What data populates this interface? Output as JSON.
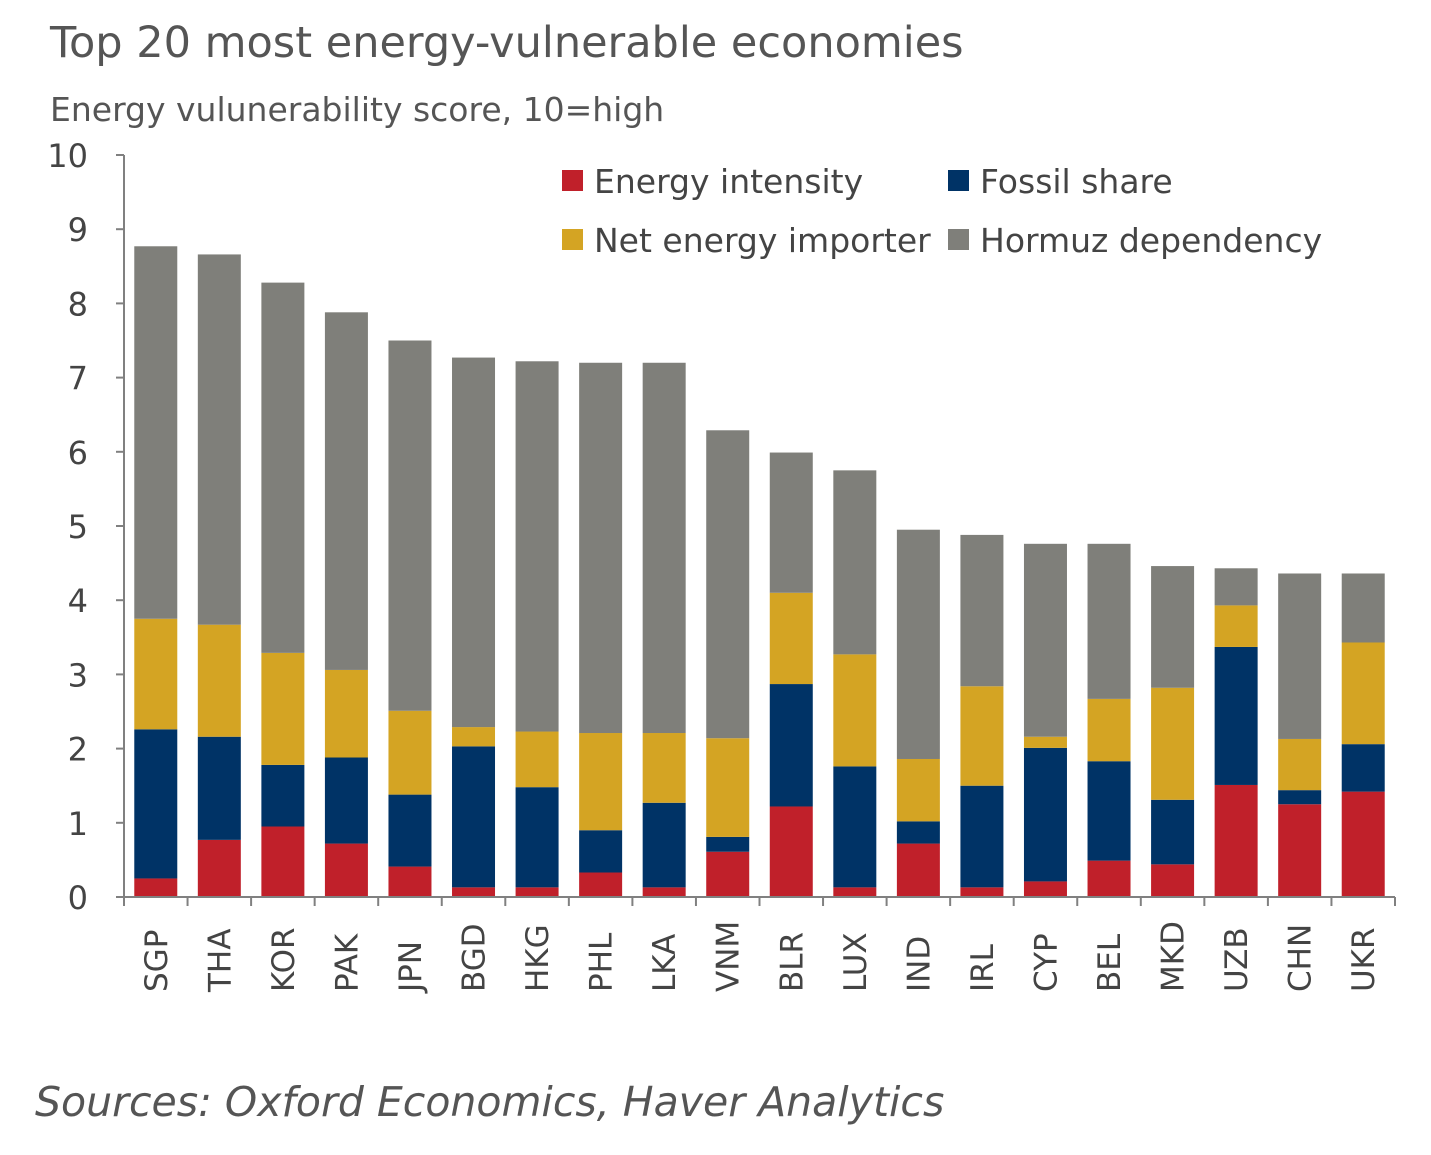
{
  "title": "Top 20 most energy-vulnerable economies",
  "subtitle": "Energy vulunerability score, 10=high",
  "source": "Sources: Oxford Economics, Haver Analytics",
  "chart_data": {
    "type": "bar",
    "stacked": true,
    "ylim": [
      0,
      10
    ],
    "yticks": [
      0,
      1,
      2,
      3,
      4,
      5,
      6,
      7,
      8,
      9,
      10
    ],
    "grid": false,
    "legend_position": "top-right",
    "categories": [
      "SGP",
      "THA",
      "KOR",
      "PAK",
      "JPN",
      "BGD",
      "HKG",
      "PHL",
      "LKA",
      "VNM",
      "BLR",
      "LUX",
      "IND",
      "IRL",
      "CYP",
      "BEL",
      "MKD",
      "UZB",
      "CHN",
      "UKR"
    ],
    "series": [
      {
        "name": "Energy intensity",
        "color": "#c0202a",
        "values": [
          0.25,
          0.77,
          0.95,
          0.72,
          0.41,
          0.13,
          0.13,
          0.33,
          0.13,
          0.61,
          1.22,
          0.13,
          0.72,
          0.13,
          0.21,
          0.49,
          0.44,
          1.51,
          1.25,
          1.42
        ]
      },
      {
        "name": "Fossil share",
        "color": "#003366",
        "values": [
          2.01,
          1.39,
          0.83,
          1.16,
          0.97,
          1.9,
          1.35,
          0.57,
          1.14,
          0.2,
          1.65,
          1.63,
          0.3,
          1.37,
          1.8,
          1.34,
          0.87,
          1.86,
          0.19,
          0.64
        ]
      },
      {
        "name": "Net energy importer",
        "color": "#d4a423",
        "values": [
          1.49,
          1.51,
          1.51,
          1.18,
          1.13,
          0.26,
          0.75,
          1.31,
          0.94,
          1.33,
          1.23,
          1.51,
          0.84,
          1.34,
          0.15,
          0.84,
          1.51,
          0.56,
          0.69,
          1.37
        ]
      },
      {
        "name": "Hormuz dependency",
        "color": "#7f7f7a",
        "values": [
          5.02,
          4.99,
          4.99,
          4.82,
          4.99,
          4.98,
          4.99,
          4.99,
          4.99,
          4.15,
          1.89,
          2.48,
          3.09,
          2.04,
          2.6,
          2.09,
          1.64,
          0.5,
          2.23,
          0.93
        ]
      }
    ]
  }
}
